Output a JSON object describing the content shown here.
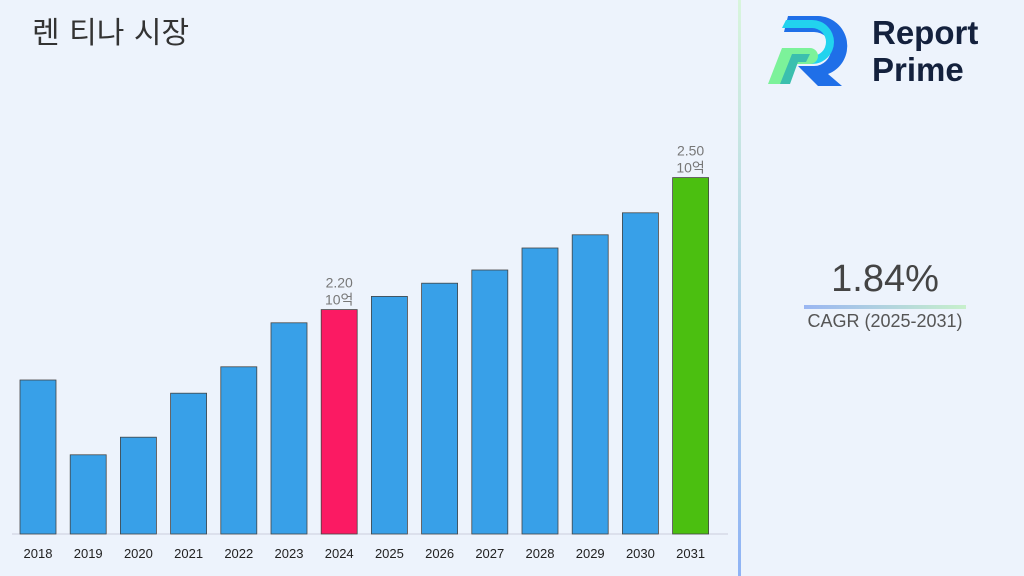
{
  "title": "렌 티나 시장",
  "logo": {
    "line1": "Report",
    "line2": "Prime"
  },
  "cagr": {
    "value": "1.84%",
    "label": "CAGR (2025-2031)"
  },
  "colors": {
    "default": "#38a0e8",
    "highlight_2024": "#fb1a63",
    "highlight_2031": "#4bbf10"
  },
  "chart_data": {
    "type": "bar",
    "categories": [
      "2018",
      "2019",
      "2020",
      "2021",
      "2022",
      "2023",
      "2024",
      "2025",
      "2026",
      "2027",
      "2028",
      "2029",
      "2030",
      "2031"
    ],
    "values": [
      2.04,
      1.87,
      1.91,
      2.01,
      2.07,
      2.17,
      2.2,
      2.23,
      2.26,
      2.29,
      2.34,
      2.37,
      2.42,
      2.5
    ],
    "ylim": [
      1.69,
      2.6
    ],
    "unit": "10억",
    "data_labels": {
      "6": "2.20",
      "13": "2.50"
    },
    "grid": false
  }
}
